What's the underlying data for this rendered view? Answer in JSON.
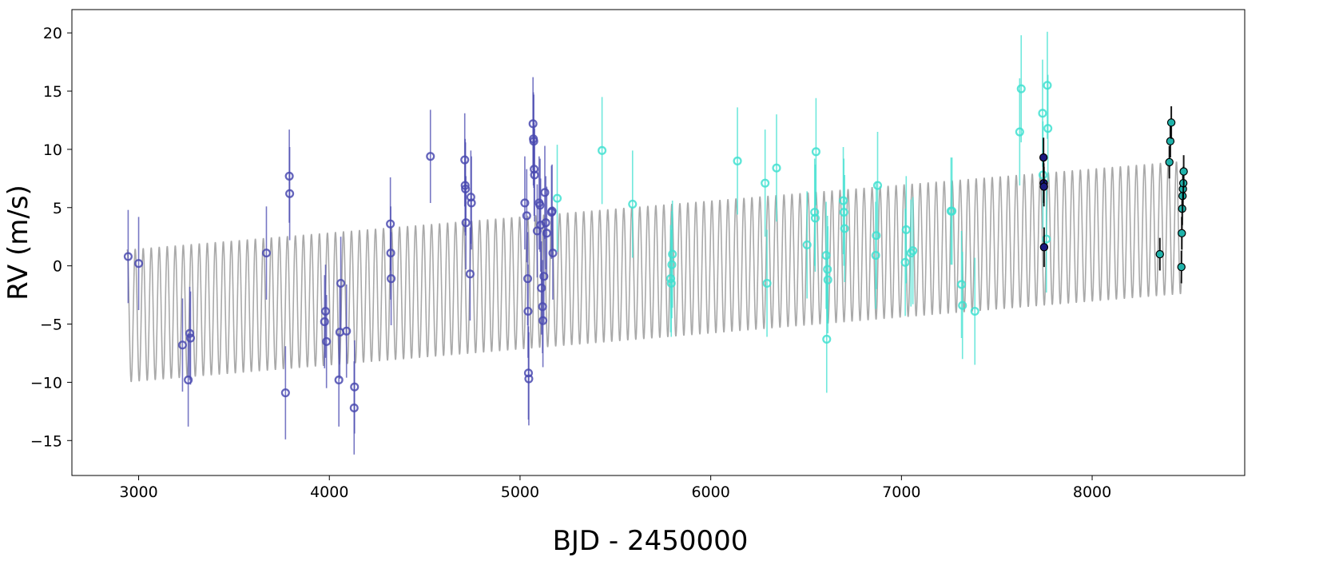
{
  "chart_data": {
    "type": "scatter",
    "title": "",
    "xlabel": "BJD - 2450000",
    "ylabel": "RV (m/s)",
    "xlim": [
      2650,
      8800
    ],
    "ylim": [
      -18,
      22
    ],
    "xticks": [
      3000,
      4000,
      5000,
      6000,
      7000,
      8000
    ],
    "yticks": [
      -15,
      -10,
      -5,
      0,
      5,
      10,
      15,
      20
    ],
    "xtick_labels": [
      "3000",
      "4000",
      "5000",
      "6000",
      "7000",
      "8000"
    ],
    "ytick_labels": [
      "−15",
      "−10",
      "−5",
      "0",
      "5",
      "10",
      "15",
      "20"
    ],
    "grid": false,
    "legend": "none",
    "model": {
      "description": "keplerian model curve",
      "color": "#a9a9a9",
      "x_range": [
        2940,
        8480
      ],
      "trend_start": -4.3,
      "trend_end": 3.3,
      "period": 42.0,
      "semi_amplitude": 5.7
    },
    "series": [
      {
        "color": "#4a4ab0",
        "marker": "open-circle",
        "points": [
          {
            "x": 2945,
            "y": 0.8,
            "err": 4.0
          },
          {
            "x": 3000,
            "y": 0.2,
            "err": 4.0
          },
          {
            "x": 3230,
            "y": -6.8,
            "err": 4.0
          },
          {
            "x": 3260,
            "y": -9.8,
            "err": 4.0
          },
          {
            "x": 3268,
            "y": -5.8,
            "err": 4.0
          },
          {
            "x": 3272,
            "y": -6.2,
            "err": 4.0
          },
          {
            "x": 3670,
            "y": 1.1,
            "err": 4.0
          },
          {
            "x": 3770,
            "y": -10.9,
            "err": 4.0
          },
          {
            "x": 3790,
            "y": 7.7,
            "err": 4.0
          },
          {
            "x": 3792,
            "y": 6.2,
            "err": 4.0
          },
          {
            "x": 3975,
            "y": -4.8,
            "err": 4.0
          },
          {
            "x": 3980,
            "y": -3.9,
            "err": 4.0
          },
          {
            "x": 3985,
            "y": -6.5,
            "err": 4.0
          },
          {
            "x": 4050,
            "y": -9.8,
            "err": 4.0
          },
          {
            "x": 4055,
            "y": -5.7,
            "err": 4.0
          },
          {
            "x": 4060,
            "y": -1.5,
            "err": 4.0
          },
          {
            "x": 4090,
            "y": -5.6,
            "err": 4.0
          },
          {
            "x": 4130,
            "y": -12.2,
            "err": 4.0
          },
          {
            "x": 4132,
            "y": -10.4,
            "err": 4.0
          },
          {
            "x": 4320,
            "y": 3.6,
            "err": 4.0
          },
          {
            "x": 4322,
            "y": 1.1,
            "err": 4.0
          },
          {
            "x": 4324,
            "y": -1.1,
            "err": 4.0
          },
          {
            "x": 4530,
            "y": 9.4,
            "err": 4.0
          },
          {
            "x": 4710,
            "y": 9.1,
            "err": 4.0
          },
          {
            "x": 4712,
            "y": 6.9,
            "err": 4.0
          },
          {
            "x": 4714,
            "y": 6.6,
            "err": 4.0
          },
          {
            "x": 4716,
            "y": 3.7,
            "err": 4.0
          },
          {
            "x": 4738,
            "y": -0.7,
            "err": 4.0
          },
          {
            "x": 4742,
            "y": 5.9,
            "err": 4.0
          },
          {
            "x": 4745,
            "y": 5.4,
            "err": 4.0
          },
          {
            "x": 5025,
            "y": 5.4,
            "err": 4.0
          },
          {
            "x": 5035,
            "y": 4.3,
            "err": 4.0
          },
          {
            "x": 5040,
            "y": -1.1,
            "err": 4.0
          },
          {
            "x": 5042,
            "y": -3.9,
            "err": 4.0
          },
          {
            "x": 5044,
            "y": -9.2,
            "err": 4.0
          },
          {
            "x": 5046,
            "y": -9.7,
            "err": 4.0
          },
          {
            "x": 5068,
            "y": 12.2,
            "err": 4.0
          },
          {
            "x": 5070,
            "y": 10.9,
            "err": 4.0
          },
          {
            "x": 5072,
            "y": 10.7,
            "err": 4.0
          },
          {
            "x": 5074,
            "y": 8.3,
            "err": 4.0
          },
          {
            "x": 5076,
            "y": 7.8,
            "err": 4.0
          },
          {
            "x": 5090,
            "y": 3.0,
            "err": 4.0
          },
          {
            "x": 5100,
            "y": 5.4,
            "err": 4.0
          },
          {
            "x": 5105,
            "y": 5.2,
            "err": 4.0
          },
          {
            "x": 5108,
            "y": 3.5,
            "err": 4.0
          },
          {
            "x": 5112,
            "y": -1.9,
            "err": 4.0
          },
          {
            "x": 5118,
            "y": -3.5,
            "err": 4.0
          },
          {
            "x": 5120,
            "y": -4.7,
            "err": 4.0
          },
          {
            "x": 5125,
            "y": -0.9,
            "err": 4.0
          },
          {
            "x": 5130,
            "y": 6.3,
            "err": 4.0
          },
          {
            "x": 5135,
            "y": 3.7,
            "err": 4.0
          },
          {
            "x": 5140,
            "y": 2.8,
            "err": 4.0
          },
          {
            "x": 5165,
            "y": 4.6,
            "err": 4.0
          },
          {
            "x": 5168,
            "y": 4.7,
            "err": 4.0
          },
          {
            "x": 5172,
            "y": 1.1,
            "err": 4.0
          }
        ]
      },
      {
        "color": "#40e0d0",
        "marker": "open-circle",
        "points": [
          {
            "x": 5195,
            "y": 5.8,
            "err": 4.6
          },
          {
            "x": 5430,
            "y": 9.9,
            "err": 4.6
          },
          {
            "x": 5590,
            "y": 5.3,
            "err": 4.6
          },
          {
            "x": 5790,
            "y": -1.1,
            "err": 4.6
          },
          {
            "x": 5793,
            "y": -1.5,
            "err": 4.6
          },
          {
            "x": 5796,
            "y": 0.1,
            "err": 4.6
          },
          {
            "x": 5799,
            "y": 1.0,
            "err": 4.6
          },
          {
            "x": 6140,
            "y": 9.0,
            "err": 4.6
          },
          {
            "x": 6285,
            "y": 7.1,
            "err": 4.6
          },
          {
            "x": 6295,
            "y": -1.5,
            "err": 4.6
          },
          {
            "x": 6345,
            "y": 8.4,
            "err": 4.6
          },
          {
            "x": 6505,
            "y": 1.8,
            "err": 4.6
          },
          {
            "x": 6545,
            "y": 4.6,
            "err": 4.6
          },
          {
            "x": 6548,
            "y": 4.1,
            "err": 4.6
          },
          {
            "x": 6552,
            "y": 9.8,
            "err": 4.6
          },
          {
            "x": 6605,
            "y": 0.9,
            "err": 4.6
          },
          {
            "x": 6608,
            "y": -6.3,
            "err": 4.6
          },
          {
            "x": 6612,
            "y": -0.3,
            "err": 4.6
          },
          {
            "x": 6614,
            "y": -1.2,
            "err": 4.6
          },
          {
            "x": 6695,
            "y": 5.6,
            "err": 4.6
          },
          {
            "x": 6698,
            "y": 4.6,
            "err": 4.6
          },
          {
            "x": 6702,
            "y": 3.2,
            "err": 4.6
          },
          {
            "x": 6865,
            "y": 0.9,
            "err": 4.6
          },
          {
            "x": 6868,
            "y": 2.6,
            "err": 4.6
          },
          {
            "x": 6875,
            "y": 6.9,
            "err": 4.6
          },
          {
            "x": 7020,
            "y": 0.3,
            "err": 4.6
          },
          {
            "x": 7025,
            "y": 3.1,
            "err": 4.6
          },
          {
            "x": 7050,
            "y": 1.1,
            "err": 4.6
          },
          {
            "x": 7060,
            "y": 1.3,
            "err": 4.6
          },
          {
            "x": 7260,
            "y": 4.7,
            "err": 4.6
          },
          {
            "x": 7265,
            "y": 4.7,
            "err": 4.6
          },
          {
            "x": 7315,
            "y": -1.6,
            "err": 4.6
          },
          {
            "x": 7320,
            "y": -3.4,
            "err": 4.6
          },
          {
            "x": 7385,
            "y": -3.9,
            "err": 4.6
          },
          {
            "x": 7620,
            "y": 11.5,
            "err": 4.6
          },
          {
            "x": 7628,
            "y": 15.2,
            "err": 4.6
          },
          {
            "x": 7740,
            "y": 13.1,
            "err": 4.6
          },
          {
            "x": 7742,
            "y": 7.8,
            "err": 4.6
          },
          {
            "x": 7760,
            "y": 2.3,
            "err": 4.6
          },
          {
            "x": 7765,
            "y": 15.5,
            "err": 4.6
          },
          {
            "x": 7768,
            "y": 11.8,
            "err": 4.6
          }
        ]
      },
      {
        "color": "#1a1a80",
        "marker": "filled-circle",
        "points": [
          {
            "x": 7745,
            "y": 9.3,
            "err": 1.7
          },
          {
            "x": 7746,
            "y": 7.1,
            "err": 1.7
          },
          {
            "x": 7747,
            "y": 6.8,
            "err": 1.7
          },
          {
            "x": 7748,
            "y": 1.6,
            "err": 1.7
          }
        ]
      },
      {
        "color": "#20b2aa",
        "marker": "filled-circle",
        "points": [
          {
            "x": 8355,
            "y": 1.0,
            "err": 1.4
          },
          {
            "x": 8405,
            "y": 8.9,
            "err": 1.4
          },
          {
            "x": 8410,
            "y": 10.7,
            "err": 1.4
          },
          {
            "x": 8415,
            "y": 12.3,
            "err": 1.4
          },
          {
            "x": 8468,
            "y": -0.1,
            "err": 1.4
          },
          {
            "x": 8470,
            "y": 2.8,
            "err": 1.4
          },
          {
            "x": 8472,
            "y": 4.9,
            "err": 1.4
          },
          {
            "x": 8474,
            "y": 6.0,
            "err": 1.4
          },
          {
            "x": 8476,
            "y": 6.6,
            "err": 1.4
          },
          {
            "x": 8478,
            "y": 7.1,
            "err": 1.4
          },
          {
            "x": 8480,
            "y": 8.1,
            "err": 1.4
          }
        ]
      }
    ]
  }
}
